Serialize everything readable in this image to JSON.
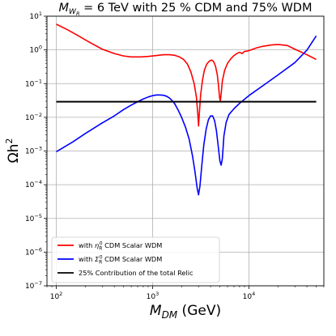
{
  "chart_data": {
    "type": "line",
    "title": {
      "prefix": "M",
      "prefix_sub": "W",
      "prefix_subsub": "R",
      "rest": " = 6 TeV with 25 % CDM and 75% WDM"
    },
    "xlabel": {
      "main": "M",
      "sub": "DM",
      "unit": " (GeV)"
    },
    "ylabel": {
      "main": "Ωh",
      "sup": "2"
    },
    "xscale": "log",
    "yscale": "log",
    "xlim": [
      80,
      60000
    ],
    "ylim": [
      1e-07,
      10
    ],
    "grid": true,
    "xticks": [
      {
        "value": 100,
        "base": "10",
        "exp": "2"
      },
      {
        "value": 1000,
        "base": "10",
        "exp": "3"
      },
      {
        "value": 10000,
        "base": "10",
        "exp": "4"
      }
    ],
    "yticks": [
      {
        "value": 1e-07,
        "base": "10",
        "exp": "−7"
      },
      {
        "value": 1e-06,
        "base": "10",
        "exp": "−6"
      },
      {
        "value": 1e-05,
        "base": "10",
        "exp": "−5"
      },
      {
        "value": 0.0001,
        "base": "10",
        "exp": "−4"
      },
      {
        "value": 0.001,
        "base": "10",
        "exp": "−3"
      },
      {
        "value": 0.01,
        "base": "10",
        "exp": "−2"
      },
      {
        "value": 0.1,
        "base": "10",
        "exp": "−1"
      },
      {
        "value": 1,
        "base": "10",
        "exp": "0"
      },
      {
        "value": 10,
        "base": "10",
        "exp": "1"
      }
    ],
    "legend_position": "lower-left",
    "series": [
      {
        "name": "with η_R^0 CDM Scalar WDM",
        "legend": {
          "pre": "with ",
          "sym": "η",
          "sup": "0",
          "sub": "R",
          "post": " CDM Scalar WDM"
        },
        "color": "#ff0000",
        "points": [
          [
            100,
            5.8
          ],
          [
            130,
            4.0
          ],
          [
            170,
            2.6
          ],
          [
            220,
            1.7
          ],
          [
            300,
            1.05
          ],
          [
            400,
            0.78
          ],
          [
            500,
            0.66
          ],
          [
            600,
            0.62
          ],
          [
            750,
            0.62
          ],
          [
            900,
            0.64
          ],
          [
            1100,
            0.68
          ],
          [
            1300,
            0.72
          ],
          [
            1500,
            0.72
          ],
          [
            1700,
            0.69
          ],
          [
            1900,
            0.62
          ],
          [
            2100,
            0.52
          ],
          [
            2300,
            0.38
          ],
          [
            2500,
            0.22
          ],
          [
            2700,
            0.1
          ],
          [
            2850,
            0.04
          ],
          [
            2950,
            0.012
          ],
          [
            3000,
            0.0055
          ],
          [
            3050,
            0.012
          ],
          [
            3150,
            0.045
          ],
          [
            3300,
            0.13
          ],
          [
            3450,
            0.25
          ],
          [
            3650,
            0.38
          ],
          [
            3900,
            0.47
          ],
          [
            4100,
            0.5
          ],
          [
            4300,
            0.45
          ],
          [
            4500,
            0.33
          ],
          [
            4700,
            0.18
          ],
          [
            4850,
            0.08
          ],
          [
            4950,
            0.04
          ],
          [
            5050,
            0.03
          ],
          [
            5150,
            0.05
          ],
          [
            5300,
            0.12
          ],
          [
            5600,
            0.25
          ],
          [
            6000,
            0.4
          ],
          [
            6500,
            0.55
          ],
          [
            7000,
            0.68
          ],
          [
            7500,
            0.78
          ],
          [
            8000,
            0.85
          ],
          [
            8500,
            0.78
          ],
          [
            9000,
            0.9
          ],
          [
            9500,
            0.92
          ],
          [
            10000,
            0.95
          ],
          [
            11000,
            1.05
          ],
          [
            12000,
            1.15
          ],
          [
            14000,
            1.28
          ],
          [
            17000,
            1.4
          ],
          [
            20000,
            1.45
          ],
          [
            25000,
            1.35
          ],
          [
            30000,
            1.05
          ],
          [
            40000,
            0.72
          ],
          [
            50000,
            0.52
          ]
        ]
      },
      {
        "name": "with Σ_R^0 CDM Scalar WDM",
        "legend": {
          "pre": "with ",
          "sym": "Σ",
          "sup": "0",
          "sub": "R",
          "post": " CDM Scalar WDM"
        },
        "color": "#0000ff",
        "points": [
          [
            100,
            0.00095
          ],
          [
            150,
            0.0019
          ],
          [
            200,
            0.0033
          ],
          [
            300,
            0.0068
          ],
          [
            400,
            0.011
          ],
          [
            500,
            0.017
          ],
          [
            600,
            0.023
          ],
          [
            700,
            0.029
          ],
          [
            800,
            0.035
          ],
          [
            900,
            0.04
          ],
          [
            1000,
            0.044
          ],
          [
            1100,
            0.046
          ],
          [
            1200,
            0.046
          ],
          [
            1300,
            0.045
          ],
          [
            1400,
            0.042
          ],
          [
            1500,
            0.037
          ],
          [
            1600,
            0.031
          ],
          [
            1700,
            0.025
          ],
          [
            1850,
            0.016
          ],
          [
            2000,
            0.01
          ],
          [
            2200,
            0.005
          ],
          [
            2400,
            0.0022
          ],
          [
            2600,
            0.0007
          ],
          [
            2750,
            0.00025
          ],
          [
            2900,
            8e-05
          ],
          [
            3000,
            5e-05
          ],
          [
            3100,
            9e-05
          ],
          [
            3250,
            0.0004
          ],
          [
            3400,
            0.0015
          ],
          [
            3600,
            0.0045
          ],
          [
            3800,
            0.0085
          ],
          [
            4000,
            0.011
          ],
          [
            4200,
            0.011
          ],
          [
            4400,
            0.008
          ],
          [
            4600,
            0.004
          ],
          [
            4800,
            0.0014
          ],
          [
            5000,
            0.0005
          ],
          [
            5150,
            0.00038
          ],
          [
            5300,
            0.0006
          ],
          [
            5500,
            0.0028
          ],
          [
            5800,
            0.007
          ],
          [
            6200,
            0.012
          ],
          [
            7000,
            0.018
          ],
          [
            8000,
            0.026
          ],
          [
            10000,
            0.044
          ],
          [
            15000,
            0.1
          ],
          [
            20000,
            0.18
          ],
          [
            30000,
            0.42
          ],
          [
            40000,
            0.98
          ],
          [
            50000,
            2.6
          ]
        ]
      },
      {
        "name": "25% Contribution of the total Relic",
        "legend": {
          "pre": "25% Contribution of the total Relic",
          "sym": "",
          "sup": "",
          "sub": "",
          "post": ""
        },
        "color": "#000000",
        "points": [
          [
            100,
            0.029
          ],
          [
            50000,
            0.029
          ]
        ]
      }
    ]
  }
}
